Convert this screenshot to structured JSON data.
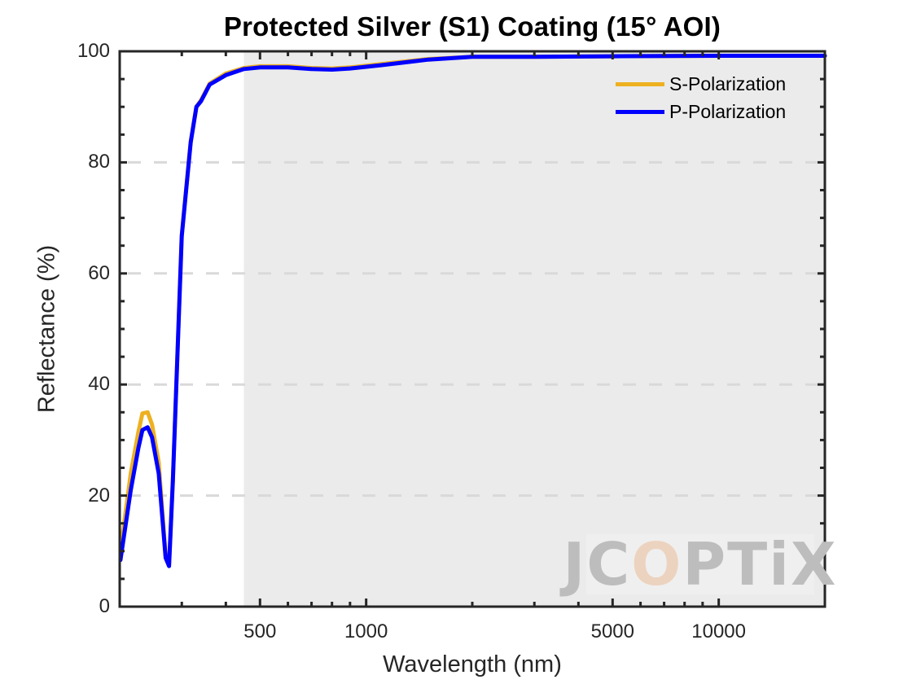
{
  "chart_data": {
    "type": "line",
    "title": "Protected Silver (S1) Coating  (15° AOI)",
    "xlabel": "Wavelength (nm)",
    "ylabel": "Reflectance (%)",
    "xscale": "log",
    "xlim": [
      200,
      20000
    ],
    "ylim": [
      0,
      100
    ],
    "xticks": [
      500,
      1000,
      5000,
      10000
    ],
    "xtick_labels": [
      "500",
      "1000",
      "5000",
      "10000"
    ],
    "yticks": [
      0,
      20,
      40,
      60,
      80,
      100
    ],
    "ytick_labels": [
      "0",
      "20",
      "40",
      "60",
      "80",
      "100"
    ],
    "grid": "horizontal dashed at 20, 40, 60, 80",
    "shaded_region": {
      "x_start": 450,
      "x_end": 20000,
      "color": "#ebebeb"
    },
    "legend_position": "upper right",
    "series": [
      {
        "name": "S-Polarization",
        "color": "#edb120",
        "x": [
          201,
          215,
          226,
          232,
          240,
          247,
          258,
          270,
          276,
          283,
          300,
          318,
          330,
          340,
          360,
          400,
          450,
          500,
          600,
          700,
          800,
          900,
          1100,
          1500,
          2000,
          3000,
          5000,
          10000,
          20000
        ],
        "y": [
          10.0,
          24.0,
          31.5,
          34.8,
          35.0,
          32.8,
          26.0,
          9.2,
          7.5,
          22.8,
          67.0,
          83.8,
          90.0,
          91.2,
          94.2,
          96.0,
          97.0,
          97.3,
          97.3,
          97.0,
          96.9,
          97.1,
          97.7,
          98.6,
          99.0,
          99.0,
          99.1,
          99.2,
          99.2
        ]
      },
      {
        "name": "P-Polarization",
        "color": "#0000ff",
        "x": [
          201,
          215,
          226,
          232,
          240,
          247,
          258,
          270,
          276,
          283,
          300,
          318,
          330,
          340,
          360,
          400,
          450,
          500,
          600,
          700,
          800,
          900,
          1100,
          1500,
          2000,
          3000,
          5000,
          10000,
          20000
        ],
        "y": [
          8.4,
          21.0,
          28.6,
          31.8,
          32.3,
          30.5,
          24.0,
          8.8,
          7.3,
          22.7,
          66.7,
          83.6,
          90.0,
          91.0,
          94.0,
          95.7,
          96.8,
          97.1,
          97.1,
          96.8,
          96.7,
          96.9,
          97.5,
          98.5,
          99.0,
          99.0,
          99.1,
          99.2,
          99.2
        ]
      }
    ],
    "annotations": [
      "JCOPTIX watermark logo (lower right)"
    ]
  },
  "logo": {
    "part1": "JC",
    "accent": "O",
    "part2": "PTiX"
  }
}
